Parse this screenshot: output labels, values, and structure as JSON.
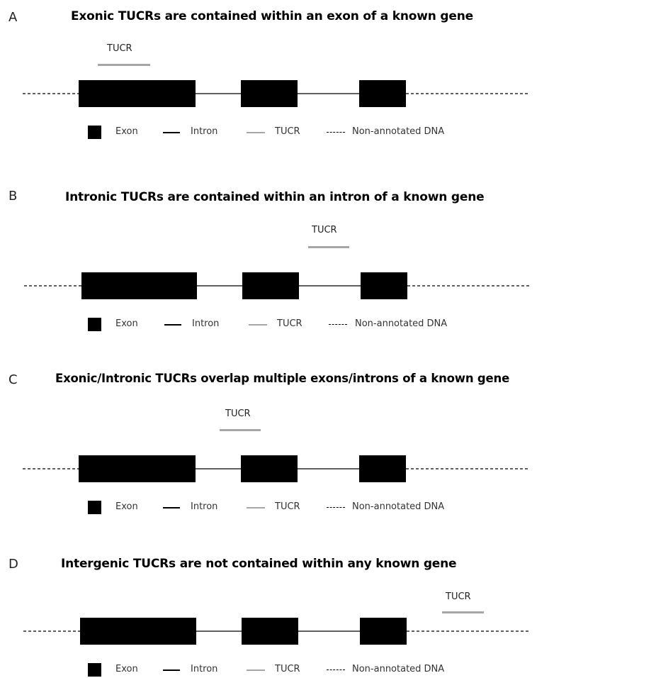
{
  "panels": [
    {
      "letter": "A",
      "title": "Exonic TUCRs are contained within an exon of a known gene",
      "tucr_label": "TUCR"
    },
    {
      "letter": "B",
      "title": "Intronic TUCRs are contained within an intron of a known gene",
      "tucr_label": "TUCR"
    },
    {
      "letter": "C",
      "title": "Exonic/Intronic TUCRs overlap multiple exons/introns of a known gene",
      "tucr_label": "TUCR"
    },
    {
      "letter": "D",
      "title": "Intergenic TUCRs are not contained within any known gene",
      "tucr_label": "TUCR"
    }
  ],
  "legend": {
    "exon": "Exon",
    "intron": "Intron",
    "tucr": "TUCR",
    "non_annotated": "Non-annotated DNA"
  },
  "colors": {
    "exon": "#000000",
    "intron": "#000000",
    "tucr": "#a6a6a6",
    "non_annotated_dna": "#000000"
  }
}
